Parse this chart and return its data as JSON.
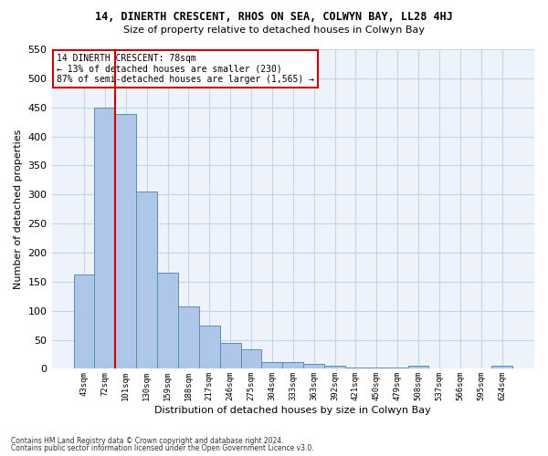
{
  "title1": "14, DINERTH CRESCENT, RHOS ON SEA, COLWYN BAY, LL28 4HJ",
  "title2": "Size of property relative to detached houses in Colwyn Bay",
  "xlabel": "Distribution of detached houses by size in Colwyn Bay",
  "ylabel": "Number of detached properties",
  "footer1": "Contains HM Land Registry data © Crown copyright and database right 2024.",
  "footer2": "Contains public sector information licensed under the Open Government Licence v3.0.",
  "annotation_title": "14 DINERTH CRESCENT: 78sqm",
  "annotation_line2": "← 13% of detached houses are smaller (230)",
  "annotation_line3": "87% of semi-detached houses are larger (1,565) →",
  "bar_categories": [
    "43sqm",
    "72sqm",
    "101sqm",
    "130sqm",
    "159sqm",
    "188sqm",
    "217sqm",
    "246sqm",
    "275sqm",
    "304sqm",
    "333sqm",
    "363sqm",
    "392sqm",
    "421sqm",
    "450sqm",
    "479sqm",
    "508sqm",
    "537sqm",
    "566sqm",
    "595sqm",
    "624sqm"
  ],
  "bar_values": [
    162,
    450,
    438,
    305,
    165,
    107,
    74,
    44,
    33,
    11,
    11,
    9,
    5,
    2,
    2,
    2,
    5,
    1,
    1,
    1,
    5
  ],
  "bar_color": "#aec6e8",
  "bar_edge_color": "#5b8db8",
  "vline_color": "#cc0000",
  "vline_x": 1.5,
  "grid_color": "#c5d5e8",
  "bg_color": "#eef2fa",
  "annotation_box_color": "#cc0000",
  "ylim": [
    0,
    550
  ],
  "yticks": [
    0,
    50,
    100,
    150,
    200,
    250,
    300,
    350,
    400,
    450,
    500,
    550
  ]
}
